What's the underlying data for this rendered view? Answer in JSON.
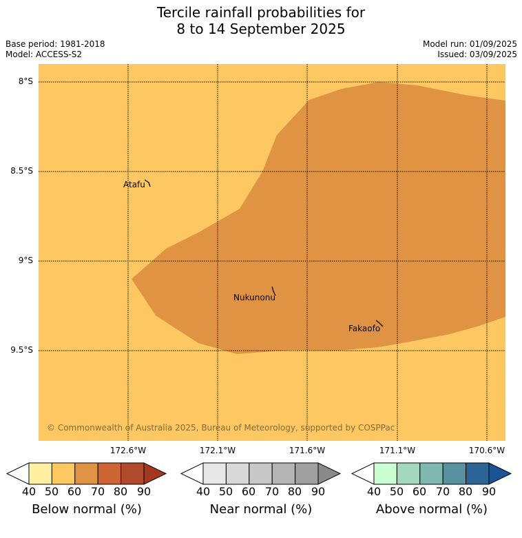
{
  "title_line1": "Tercile rainfall probabilities for",
  "title_line2": "8 to 14 September 2025",
  "base_period": "Base period: 1981-2018",
  "model": "Model: ACCESS-S2",
  "model_run": "Model run: 01/09/2025",
  "issued": "Issued: 03/09/2025",
  "map": {
    "lat_labels": [
      "8°S",
      "8.5°S",
      "9°S",
      "9.5°S"
    ],
    "lon_labels": [
      "172.6°W",
      "172.1°W",
      "171.6°W",
      "171.1°W",
      "170.6°W"
    ],
    "places": [
      "Atafu",
      "Nukunonu",
      "Fakaofo"
    ],
    "copyright": "© Commonwealth of Australia 2025, Bureau of Meteorology, supported by COSPPac",
    "colors": {
      "below_50_60": "#fdc862",
      "below_60_70": "#e09443"
    }
  },
  "colorbars": [
    {
      "title": "Below normal (%)",
      "ticks": [
        "40",
        "50",
        "60",
        "70",
        "80",
        "90"
      ],
      "colors": [
        "#ffffff",
        "#fef0a0",
        "#fdc862",
        "#e09443",
        "#cc6433",
        "#b14a2a",
        "#a0391f"
      ]
    },
    {
      "title": "Near normal (%)",
      "ticks": [
        "40",
        "50",
        "60",
        "70",
        "80",
        "90"
      ],
      "colors": [
        "#ffffff",
        "#e7e7e7",
        "#d8d8d8",
        "#c8c8c8",
        "#b4b4b4",
        "#a0a0a0",
        "#8a8a8a"
      ]
    },
    {
      "title": "Above normal (%)",
      "ticks": [
        "40",
        "50",
        "60",
        "70",
        "80",
        "90"
      ],
      "colors": [
        "#ffffff",
        "#cafdd0",
        "#a2d8bd",
        "#80b8b0",
        "#5892a0",
        "#2d6496",
        "#1a5494"
      ]
    }
  ]
}
